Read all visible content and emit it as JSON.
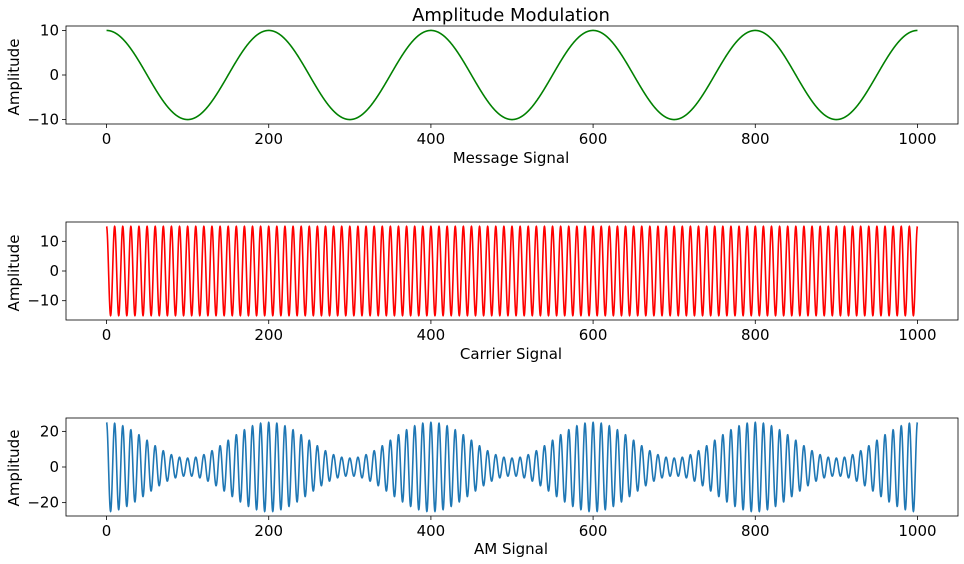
{
  "figure_title": "Amplitude Modulation",
  "chart_data": [
    {
      "type": "line",
      "title": "Amplitude Modulation",
      "xlabel": "Message Signal",
      "ylabel": "Amplitude",
      "xlim": [
        -50,
        1050
      ],
      "ylim": [
        -11,
        11
      ],
      "xticks": [
        0,
        200,
        400,
        600,
        800,
        1000
      ],
      "yticks": [
        -10,
        0,
        10
      ],
      "color": "#008000",
      "grid": false,
      "series": [
        {
          "formula": "10*cos(2*pi*x/200)",
          "x_range": [
            0,
            1000
          ],
          "period": 200,
          "amplitude": 10,
          "sample_points": {
            "x": [
              0,
              100,
              200,
              300,
              400,
              500,
              600,
              700,
              800,
              900,
              1000
            ],
            "y": [
              10,
              -10,
              10,
              -10,
              10,
              -10,
              10,
              -10,
              10,
              -10,
              10
            ]
          }
        }
      ]
    },
    {
      "type": "line",
      "title": "",
      "xlabel": "Carrier Signal",
      "ylabel": "Amplitude",
      "xlim": [
        -50,
        1050
      ],
      "ylim": [
        -16.5,
        16.5
      ],
      "xticks": [
        0,
        200,
        400,
        600,
        800,
        1000
      ],
      "yticks": [
        -10,
        0,
        10
      ],
      "color": "#ff0000",
      "grid": false,
      "series": [
        {
          "formula": "15*cos(2*pi*x/10)",
          "x_range": [
            0,
            1000
          ],
          "period": 10,
          "amplitude": 15,
          "sample_points": {
            "x": [
              0,
              5,
              10,
              15,
              20
            ],
            "y": [
              15,
              -15,
              15,
              -15,
              15
            ]
          }
        }
      ]
    },
    {
      "type": "line",
      "title": "",
      "xlabel": "AM Signal",
      "ylabel": "Amplitude",
      "xlim": [
        -50,
        1050
      ],
      "ylim": [
        -27.5,
        27.5
      ],
      "xticks": [
        0,
        200,
        400,
        600,
        800,
        1000
      ],
      "yticks": [
        -20,
        0,
        20
      ],
      "color": "#1f77b4",
      "grid": false,
      "series": [
        {
          "formula": "(15 + 10*cos(2*pi*x/200))*cos(2*pi*x/10)",
          "x_range": [
            0,
            1000
          ],
          "envelope_max": 25,
          "envelope_min": 5,
          "sample_points": {
            "x": [
              0,
              100,
              200,
              300,
              400
            ],
            "y": [
              25,
              5,
              25,
              5,
              25
            ]
          }
        }
      ]
    }
  ]
}
